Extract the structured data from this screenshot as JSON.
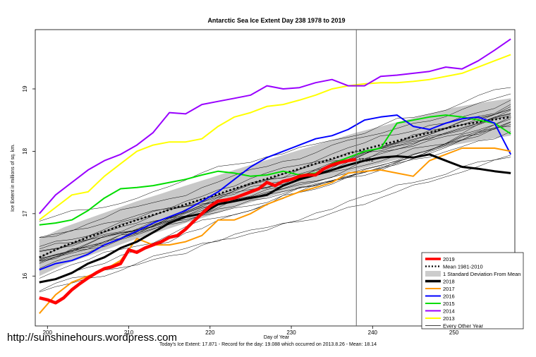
{
  "chart_data": {
    "type": "line",
    "title": "Antarctic Sea Ice Extent Day 238 1978 to 2019",
    "xlabel": "Day of Year",
    "ylabel": "Ice Extent in millions of sq. km.",
    "xlim": [
      198.5,
      257.5
    ],
    "ylim": [
      15.2,
      19.95
    ],
    "xticks": [
      200,
      210,
      220,
      230,
      240,
      250
    ],
    "yticks": [
      16,
      17,
      18,
      19
    ],
    "vline_day": 238,
    "legend_position": "bottom-right",
    "legend": [
      {
        "label": "2019",
        "color": "#ff0000",
        "style": "thick"
      },
      {
        "label": "Mean 1981-2010",
        "color": "#000000",
        "style": "dotted"
      },
      {
        "label": "1 Standard Deviation From Mean",
        "color": "#cccccc",
        "style": "band"
      },
      {
        "label": "2018",
        "color": "#000000",
        "style": "thick"
      },
      {
        "label": "2017",
        "color": "#ff9900",
        "style": "medium"
      },
      {
        "label": "2016",
        "color": "#0000ff",
        "style": "medium"
      },
      {
        "label": "2015",
        "color": "#00dd00",
        "style": "medium"
      },
      {
        "label": "2014",
        "color": "#9900ff",
        "style": "medium"
      },
      {
        "label": "2013",
        "color": "#ffff00",
        "style": "medium"
      },
      {
        "label": "Every Other Year",
        "color": "#000000",
        "style": "thin"
      }
    ],
    "mean": {
      "x": [
        199,
        202,
        205,
        208,
        211,
        214,
        217,
        220,
        223,
        226,
        229,
        232,
        235,
        238,
        241,
        244,
        247,
        250,
        253,
        257
      ],
      "y": [
        16.3,
        16.48,
        16.62,
        16.76,
        16.9,
        17.02,
        17.15,
        17.27,
        17.4,
        17.52,
        17.64,
        17.76,
        17.88,
        18.0,
        18.1,
        18.2,
        18.3,
        18.4,
        18.47,
        18.55
      ]
    },
    "std_band": {
      "x": [
        199,
        202,
        205,
        208,
        211,
        214,
        217,
        220,
        223,
        226,
        229,
        232,
        235,
        238,
        241,
        244,
        247,
        250,
        253,
        257
      ],
      "lower": [
        16.0,
        16.18,
        16.32,
        16.46,
        16.6,
        16.72,
        16.85,
        16.97,
        17.1,
        17.22,
        17.34,
        17.46,
        17.58,
        17.7,
        17.8,
        17.9,
        18.0,
        18.1,
        18.17,
        18.25
      ],
      "upper": [
        16.6,
        16.78,
        16.92,
        17.06,
        17.2,
        17.32,
        17.45,
        17.57,
        17.7,
        17.82,
        17.94,
        18.06,
        18.18,
        18.3,
        18.4,
        18.5,
        18.6,
        18.7,
        18.77,
        18.85
      ]
    },
    "series": [
      {
        "name": "2019",
        "color": "#ff0000",
        "width": 4.5,
        "x": [
          199,
          200,
          201,
          202,
          203,
          204,
          205,
          206,
          207,
          208,
          209,
          210,
          211,
          212,
          213,
          214,
          215,
          216,
          217,
          218,
          219,
          220,
          221,
          222,
          223,
          224,
          225,
          226,
          227,
          228,
          229,
          230,
          231,
          232,
          233,
          234,
          235,
          236,
          237,
          238
        ],
        "y": [
          15.65,
          15.62,
          15.57,
          15.65,
          15.78,
          15.88,
          15.97,
          16.05,
          16.12,
          16.15,
          16.2,
          16.42,
          16.38,
          16.45,
          16.5,
          16.55,
          16.62,
          16.65,
          16.75,
          16.88,
          17.0,
          17.12,
          17.2,
          17.22,
          17.25,
          17.3,
          17.35,
          17.4,
          17.5,
          17.45,
          17.52,
          17.55,
          17.6,
          17.62,
          17.62,
          17.72,
          17.78,
          17.82,
          17.85,
          17.87
        ]
      },
      {
        "name": "2018",
        "color": "#000000",
        "width": 3,
        "x": [
          199,
          201,
          203,
          205,
          207,
          209,
          211,
          213,
          215,
          217,
          219,
          221,
          223,
          225,
          227,
          229,
          231,
          233,
          235,
          237,
          239,
          241,
          243,
          245,
          247,
          249,
          251,
          253,
          255,
          257
        ],
        "y": [
          15.9,
          15.95,
          16.05,
          16.2,
          16.3,
          16.45,
          16.55,
          16.7,
          16.85,
          16.95,
          17.0,
          17.15,
          17.2,
          17.25,
          17.3,
          17.45,
          17.55,
          17.62,
          17.7,
          17.78,
          17.85,
          17.9,
          17.92,
          17.9,
          17.95,
          17.85,
          17.75,
          17.72,
          17.68,
          17.65
        ]
      },
      {
        "name": "2017",
        "color": "#ff9900",
        "width": 2,
        "x": [
          199,
          201,
          203,
          205,
          207,
          209,
          211,
          213,
          215,
          217,
          219,
          221,
          223,
          225,
          227,
          229,
          231,
          233,
          235,
          237,
          239,
          241,
          243,
          245,
          247,
          249,
          251,
          253,
          255,
          257
        ],
        "y": [
          15.4,
          15.7,
          15.9,
          16.0,
          16.1,
          16.25,
          16.6,
          16.5,
          16.5,
          16.55,
          16.65,
          16.9,
          16.9,
          17.0,
          17.15,
          17.25,
          17.35,
          17.42,
          17.5,
          17.65,
          17.68,
          17.7,
          17.65,
          17.6,
          17.85,
          17.95,
          18.05,
          18.05,
          18.05,
          18.0
        ]
      },
      {
        "name": "2016",
        "color": "#0000ff",
        "width": 2,
        "x": [
          199,
          201,
          203,
          205,
          207,
          209,
          211,
          213,
          215,
          217,
          219,
          221,
          223,
          225,
          227,
          229,
          231,
          233,
          235,
          237,
          239,
          241,
          243,
          245,
          247,
          249,
          251,
          253,
          255,
          257
        ],
        "y": [
          16.1,
          16.2,
          16.25,
          16.35,
          16.5,
          16.6,
          16.72,
          16.85,
          16.95,
          17.05,
          17.2,
          17.35,
          17.55,
          17.75,
          17.9,
          18.0,
          18.1,
          18.2,
          18.25,
          18.35,
          18.5,
          18.55,
          18.58,
          18.4,
          18.35,
          18.45,
          18.52,
          18.55,
          18.45,
          17.95
        ]
      },
      {
        "name": "2015",
        "color": "#00dd00",
        "width": 2,
        "x": [
          199,
          201,
          203,
          205,
          207,
          209,
          211,
          213,
          215,
          217,
          219,
          221,
          223,
          225,
          227,
          229,
          231,
          233,
          235,
          237,
          239,
          241,
          243,
          245,
          247,
          249,
          251,
          253,
          255,
          257
        ],
        "y": [
          16.82,
          16.85,
          16.9,
          17.05,
          17.25,
          17.4,
          17.42,
          17.45,
          17.5,
          17.55,
          17.62,
          17.68,
          17.65,
          17.6,
          17.62,
          17.68,
          17.62,
          17.65,
          17.8,
          17.9,
          18.0,
          18.05,
          18.45,
          18.5,
          18.55,
          18.58,
          18.55,
          18.5,
          18.45,
          18.28
        ]
      },
      {
        "name": "2014",
        "color": "#9900ff",
        "width": 2,
        "x": [
          199,
          201,
          203,
          205,
          207,
          209,
          211,
          213,
          215,
          217,
          219,
          221,
          223,
          225,
          227,
          229,
          231,
          233,
          235,
          237,
          239,
          241,
          243,
          245,
          247,
          249,
          251,
          253,
          255,
          257
        ],
        "y": [
          17.0,
          17.3,
          17.5,
          17.7,
          17.85,
          17.95,
          18.1,
          18.3,
          18.62,
          18.6,
          18.75,
          18.8,
          18.85,
          18.9,
          19.05,
          19.0,
          19.02,
          19.1,
          19.15,
          19.05,
          19.05,
          19.2,
          19.22,
          19.25,
          19.28,
          19.35,
          19.32,
          19.45,
          19.62,
          19.8
        ]
      },
      {
        "name": "2013",
        "color": "#ffff00",
        "width": 2,
        "x": [
          199,
          201,
          203,
          205,
          207,
          209,
          211,
          213,
          215,
          217,
          219,
          221,
          223,
          225,
          227,
          229,
          231,
          233,
          235,
          237,
          239,
          241,
          243,
          245,
          247,
          249,
          251,
          253,
          255,
          257
        ],
        "y": [
          16.9,
          17.1,
          17.3,
          17.35,
          17.6,
          17.8,
          18.0,
          18.1,
          18.15,
          18.15,
          18.2,
          18.4,
          18.55,
          18.62,
          18.72,
          18.75,
          18.82,
          18.9,
          19.0,
          19.05,
          19.08,
          19.1,
          19.1,
          19.12,
          19.15,
          19.2,
          19.25,
          19.35,
          19.45,
          19.55
        ]
      }
    ],
    "other_years_count": 20,
    "footer_note": "Today's Ice Extent: 17.871  - Record for the day: 19.088 which occurred on 2013.8.26 - Mean: 18.14",
    "inline_label": "17.871"
  },
  "watermark": "http://sunshinehours.wordpress.com"
}
